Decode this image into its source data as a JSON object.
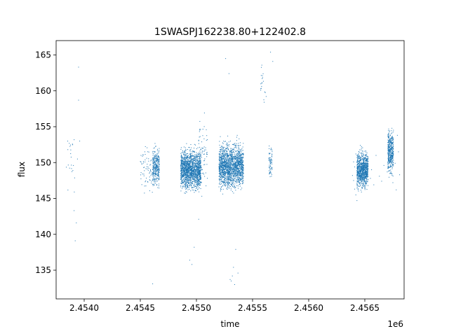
{
  "chart_data": {
    "type": "scatter",
    "title": "1SWASPJ162238.80+122402.8",
    "xlabel": "time",
    "ylabel": "flux",
    "x_offset_label": "1e6",
    "xlim": [
      2.45375,
      2.45685
    ],
    "ylim": [
      131.0,
      167.0
    ],
    "x_ticks": [
      2.454,
      2.4545,
      2.455,
      2.4555,
      2.456,
      2.4565
    ],
    "x_tick_labels": [
      "2.4540",
      "2.4545",
      "2.4550",
      "2.4555",
      "2.4560",
      "2.4565"
    ],
    "y_ticks": [
      135,
      140,
      145,
      150,
      155,
      160,
      165
    ],
    "y_tick_labels": [
      "135",
      "140",
      "145",
      "150",
      "155",
      "160",
      "165"
    ],
    "grid": false,
    "marker_color": "#1f77b4",
    "series": [
      {
        "x": [
          2.45391,
          2.45392,
          2.45393,
          2.45394,
          2.45395,
          2.45395,
          2.45396,
          2.45639,
          2.4564,
          2.4564,
          2.45641,
          2.45641,
          2.45642,
          2.45642,
          2.45643,
          2.45643,
          2.45644,
          2.45644,
          2.45645,
          2.45645,
          2.45646,
          2.45646,
          2.45647,
          2.45648,
          2.45648,
          2.45649,
          2.4565,
          2.45652,
          2.45653,
          2.45655,
          2.45656,
          2.45658,
          2.4566,
          2.45663,
          2.45665,
          2.45667,
          2.4567,
          2.45673,
          2.45675,
          2.45677,
          2.45678,
          2.45679,
          2.4568,
          2.45681,
          2.45496,
          2.45494,
          2.45498,
          2.4553,
          2.45532,
          2.45534,
          2.45566,
          2.45568,
          2.45461,
          2.45502,
          2.45526,
          2.45529,
          2.45531,
          2.45533,
          2.45535,
          2.45537
        ],
        "y": [
          143.3,
          139.1,
          141.6,
          150.5,
          163.3,
          158.7,
          153.0,
          148.2,
          147.5,
          150.1,
          146.3,
          149.4,
          145.5,
          151.2,
          148.9,
          144.7,
          150.6,
          146.8,
          149.7,
          147.1,
          148.8,
          152.4,
          145.9,
          150.9,
          147.6,
          149.3,
          146.5,
          148.4,
          150.2,
          147.8,
          149.0,
          146.9,
          151.0,
          148.1,
          147.4,
          149.6,
          148.7,
          150.8,
          147.2,
          149.9,
          146.2,
          153.8,
          151.5,
          148.3,
          135.8,
          136.4,
          138.2,
          133.7,
          134.2,
          133.0,
          165.4,
          164.1,
          133.1,
          142.1,
          164.5,
          162.4,
          133.5,
          135.4,
          137.9,
          134.6
        ]
      }
    ],
    "clusters": [
      {
        "x_center": 2.45388,
        "x_width": 0.0001,
        "y_center": 150.0,
        "y_spread": 4.5,
        "count": 22
      },
      {
        "x_center": 2.45457,
        "x_width": 0.00014,
        "y_center": 149.0,
        "y_spread": 2.6,
        "count": 90
      },
      {
        "x_center": 2.45464,
        "x_width": 6e-05,
        "y_center": 149.5,
        "y_spread": 2.2,
        "count": 300
      },
      {
        "x_center": 2.45495,
        "x_width": 0.00018,
        "y_center": 149.0,
        "y_spread": 2.3,
        "count": 1600
      },
      {
        "x_center": 2.45506,
        "x_width": 8e-05,
        "y_center": 151.0,
        "y_spread": 4.0,
        "count": 70
      },
      {
        "x_center": 2.45531,
        "x_width": 0.00022,
        "y_center": 149.5,
        "y_spread": 2.6,
        "count": 1700
      },
      {
        "x_center": 2.4556,
        "x_width": 6e-05,
        "y_center": 161.0,
        "y_spread": 2.8,
        "count": 20
      },
      {
        "x_center": 2.45566,
        "x_width": 3e-05,
        "y_center": 150.0,
        "y_spread": 2.2,
        "count": 70
      },
      {
        "x_center": 2.45648,
        "x_width": 0.0001,
        "y_center": 149.0,
        "y_spread": 2.1,
        "count": 900
      },
      {
        "x_center": 2.45673,
        "x_width": 5e-05,
        "y_center": 151.5,
        "y_spread": 2.6,
        "count": 420
      }
    ]
  }
}
